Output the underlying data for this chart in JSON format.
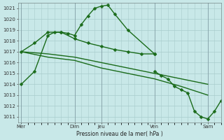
{
  "background_color": "#c8e8e8",
  "grid_color": "#a8cccc",
  "line_color": "#1a6b1a",
  "xlabel": "Pression niveau de la mer( hPa )",
  "ylim": [
    1010.5,
    1021.5
  ],
  "ytick_values": [
    1011,
    1012,
    1013,
    1014,
    1015,
    1016,
    1017,
    1018,
    1019,
    1020,
    1021
  ],
  "xtick_labels": [
    "Mer",
    "Dim",
    "Jeu",
    "Ven",
    "Sam"
  ],
  "xtick_positions": [
    0,
    8,
    12,
    20,
    28
  ],
  "xlim": [
    -0.5,
    30
  ],
  "vline_x": [
    0,
    8,
    12,
    20,
    28
  ],
  "s1_x": [
    0,
    2,
    4,
    5,
    6,
    7,
    8,
    9,
    10,
    11,
    12,
    13,
    14,
    16,
    20
  ],
  "s1_y": [
    1014.0,
    1015.2,
    1018.5,
    1018.8,
    1018.8,
    1018.7,
    1018.5,
    1019.5,
    1020.3,
    1021.0,
    1021.2,
    1021.3,
    1020.5,
    1019.0,
    1016.8
  ],
  "s2_x": [
    0,
    2,
    4,
    6,
    8,
    10,
    12,
    14,
    16,
    18,
    20
  ],
  "s2_y": [
    1017.0,
    1017.8,
    1018.8,
    1018.8,
    1018.2,
    1017.8,
    1017.5,
    1017.2,
    1017.0,
    1016.8,
    1016.8
  ],
  "s3_x": [
    0,
    4,
    8,
    12,
    16,
    20,
    24,
    28
  ],
  "s3_y": [
    1017.0,
    1016.8,
    1016.5,
    1016.0,
    1015.5,
    1015.0,
    1014.5,
    1014.0
  ],
  "s4_x": [
    0,
    4,
    8,
    12,
    16,
    20,
    24,
    28
  ],
  "s4_y": [
    1017.0,
    1016.5,
    1016.2,
    1015.5,
    1015.0,
    1014.5,
    1013.8,
    1013.0
  ],
  "s5_x": [
    20,
    21,
    22,
    23,
    24,
    25,
    26,
    27,
    28,
    29,
    30
  ],
  "s5_y": [
    1015.2,
    1014.8,
    1014.5,
    1013.8,
    1013.5,
    1013.2,
    1011.5,
    1011.0,
    1010.8,
    1011.5,
    1012.5
  ]
}
